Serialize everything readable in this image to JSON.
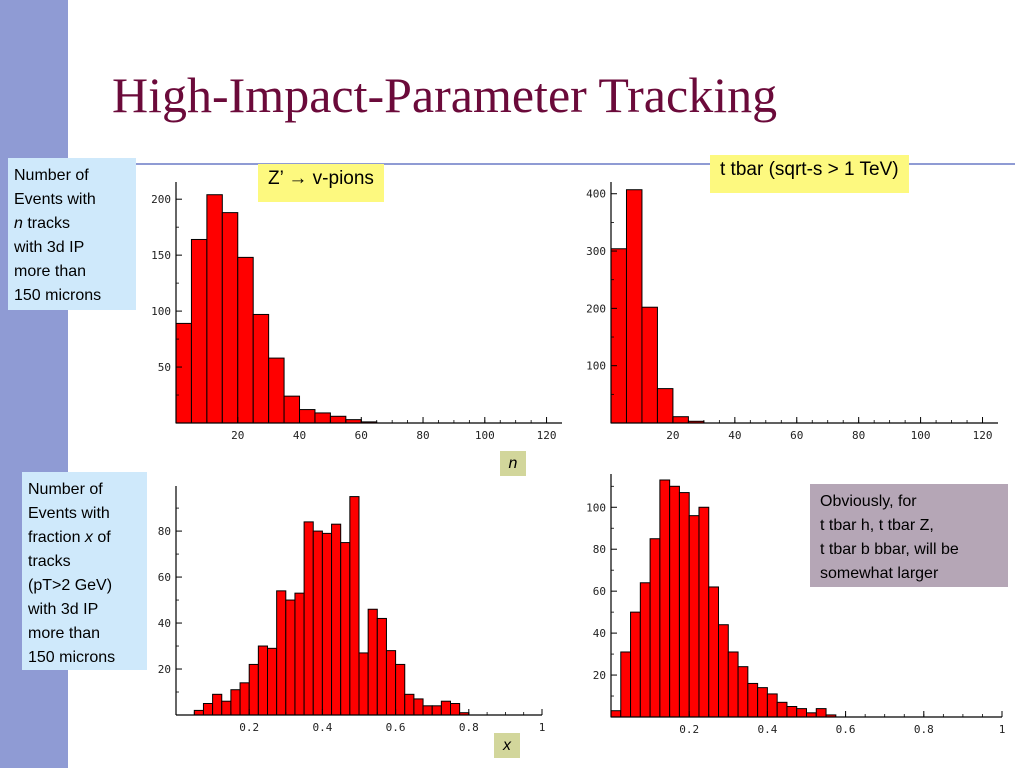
{
  "slide": {
    "title": "High-Impact-Parameter Tracking",
    "y_label_top": [
      "Number of",
      "Events with",
      "n",
      " tracks",
      "with 3d IP",
      "more than",
      "150 microns"
    ],
    "y_label_bottom": [
      "Number of",
      "Events with",
      "fraction ",
      "x",
      " of",
      "tracks",
      "(pT>2 GeV)",
      "with 3d IP",
      "more than",
      "150 microns"
    ],
    "label_zprime": "Z’ → v-pions",
    "label_ttbar": "t tbar (sqrt-s > 1 TeV)",
    "x_label_n": "n",
    "x_label_x": "x",
    "comment_lines": [
      "Obviously, for",
      "t tbar h, t tbar Z,",
      "t tbar b bbar, will be",
      "somewhat larger"
    ],
    "colors": {
      "bar": "#ff0000",
      "sidebar": "#8f9bd4",
      "title": "#6b0a3a"
    }
  },
  "chart_data": [
    {
      "type": "bar",
      "xlabel": "n",
      "xlim": [
        0,
        125
      ],
      "ylim": [
        0,
        210
      ],
      "bin_width": 5,
      "x": [
        0,
        5,
        10,
        15,
        20,
        25,
        30,
        35,
        40,
        45,
        50,
        55,
        60
      ],
      "values": [
        89,
        164,
        204,
        188,
        148,
        97,
        58,
        24,
        12,
        9,
        6,
        3,
        1
      ],
      "xticks": [
        20,
        40,
        60,
        80,
        100,
        120
      ],
      "yticks": [
        50,
        100,
        150,
        200
      ]
    },
    {
      "type": "bar",
      "xlabel": "n",
      "xlim": [
        0,
        125
      ],
      "ylim": [
        0,
        410
      ],
      "bin_width": 5,
      "x": [
        0,
        5,
        10,
        15,
        20,
        25
      ],
      "values": [
        304,
        407,
        202,
        60,
        11,
        3
      ],
      "xticks": [
        20,
        40,
        60,
        80,
        100,
        120
      ],
      "yticks": [
        100,
        200,
        300,
        400
      ]
    },
    {
      "type": "bar",
      "xlabel": "x",
      "xlim": [
        0,
        1
      ],
      "ylim": [
        0,
        97
      ],
      "bin_width": 0.025,
      "x": [
        0.05,
        0.075,
        0.1,
        0.125,
        0.15,
        0.175,
        0.2,
        0.225,
        0.25,
        0.275,
        0.3,
        0.325,
        0.35,
        0.375,
        0.4,
        0.425,
        0.45,
        0.475,
        0.5,
        0.525,
        0.55,
        0.575,
        0.6,
        0.625,
        0.65,
        0.675,
        0.7,
        0.725,
        0.75,
        0.775
      ],
      "values": [
        2,
        5,
        9,
        6,
        11,
        14,
        22,
        30,
        29,
        54,
        50,
        53,
        84,
        80,
        79,
        83,
        75,
        95,
        27,
        46,
        42,
        28,
        22,
        9,
        7,
        4,
        4,
        6,
        5,
        1
      ],
      "xticks": [
        0.2,
        0.4,
        0.6,
        0.8,
        1
      ],
      "yticks": [
        20,
        40,
        60,
        80
      ]
    },
    {
      "type": "bar",
      "xlabel": "x",
      "xlim": [
        0,
        1
      ],
      "ylim": [
        0,
        113
      ],
      "bin_width": 0.025,
      "x": [
        0,
        0.025,
        0.05,
        0.075,
        0.1,
        0.125,
        0.15,
        0.175,
        0.2,
        0.225,
        0.25,
        0.275,
        0.3,
        0.325,
        0.35,
        0.375,
        0.4,
        0.425,
        0.45,
        0.475,
        0.5,
        0.525,
        0.55
      ],
      "values": [
        3,
        31,
        50,
        64,
        85,
        113,
        110,
        107,
        96,
        100,
        62,
        44,
        31,
        24,
        16,
        14,
        11,
        7,
        5,
        4,
        2,
        4,
        1
      ],
      "xticks": [
        0.2,
        0.4,
        0.6,
        0.8,
        1
      ],
      "yticks": [
        20,
        40,
        60,
        80,
        100
      ]
    }
  ]
}
